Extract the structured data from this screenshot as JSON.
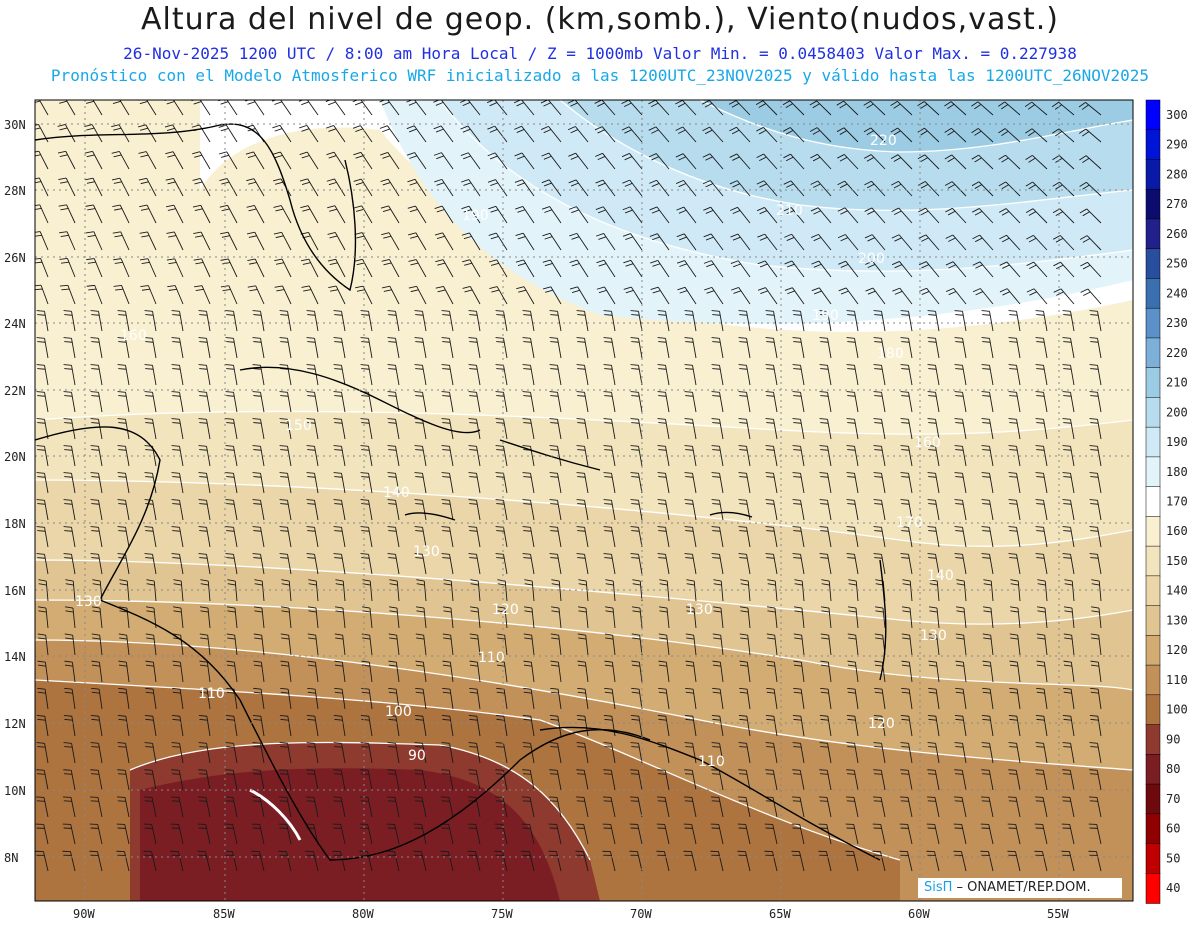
{
  "header": {
    "title": "Altura del nivel de geop. (km,somb.), Viento(nudos,vast.)",
    "subtitle": "26-Nov-2025  1200 UTC / 8:00 am Hora Local / Z = 1000mb  Valor Min. = 0.0458403  Valor Max. = 0.227938",
    "subtitle2": "Pronóstico con el Modelo Atmosferico WRF inicializado a las 1200UTC_23NOV2025 y válido hasta las  1200UTC_26NOV2025"
  },
  "map": {
    "lat_labels": [
      "30N",
      "28N",
      "26N",
      "24N",
      "22N",
      "20N",
      "18N",
      "16N",
      "14N",
      "12N",
      "10N",
      "8N"
    ],
    "lon_labels": [
      "90W",
      "85W",
      "80W",
      "75W",
      "70W",
      "65W",
      "60W",
      "55W"
    ],
    "contour_labels": [
      "220",
      "210",
      "200",
      "190",
      "180",
      "190",
      "160",
      "150",
      "140",
      "130",
      "130",
      "120",
      "130",
      "140",
      "130",
      "110",
      "110",
      "100",
      "90",
      "110",
      "120",
      "160",
      "170"
    ]
  },
  "colorbar": {
    "levels": [
      "300",
      "290",
      "280",
      "270",
      "260",
      "250",
      "240",
      "230",
      "220",
      "210",
      "200",
      "190",
      "180",
      "170",
      "160",
      "150",
      "140",
      "130",
      "120",
      "110",
      "100",
      "90",
      "80",
      "70",
      "60",
      "50",
      "40"
    ],
    "colors": [
      "#0000ff",
      "#0014d8",
      "#0a1aa8",
      "#0c0c6e",
      "#22208a",
      "#2a4e9e",
      "#3a70b0",
      "#5c90c8",
      "#7cb0d8",
      "#9ccce4",
      "#b6dcee",
      "#cfeaf6",
      "#e2f4fa",
      "#ffffff",
      "#f8f0d0",
      "#f2e4bc",
      "#ead6a8",
      "#e0c592",
      "#d2ac72",
      "#c2915a",
      "#ae7440",
      "#8e3a2e",
      "#7a1e24",
      "#6e0a0e",
      "#900000",
      "#c00000",
      "#ff0000"
    ]
  },
  "credit": {
    "logo": "SisΠ",
    "text": " – ONAMET/REP.DOM."
  }
}
